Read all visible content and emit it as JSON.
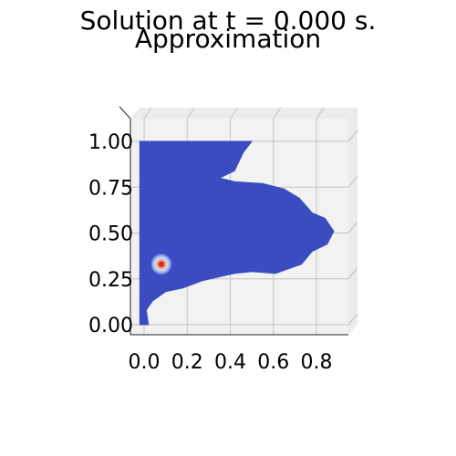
{
  "chart_data": {
    "type": "surface-3d",
    "title": "Solution at t = 0.000 s.",
    "subtitle": "Approximation",
    "view": "top-down",
    "x_ticks": [
      "0.0",
      "0.2",
      "0.4",
      "0.6",
      "0.8"
    ],
    "y_ticks": [
      "0.00",
      "0.25",
      "0.50",
      "0.75",
      "1.00"
    ],
    "xlim": [
      0.0,
      0.9
    ],
    "ylim": [
      0.0,
      1.0
    ],
    "colormap": "coolwarm",
    "surface_color": "#3b4cc0",
    "pane_color": "#f2f2f2",
    "grid": true,
    "peak": {
      "x": 0.08,
      "y": 0.33,
      "color": "#d62728"
    },
    "region_outline": [
      [
        0.0,
        1.0
      ],
      [
        0.5,
        1.0
      ],
      [
        0.46,
        0.94
      ],
      [
        0.42,
        0.84
      ],
      [
        0.35,
        0.8
      ],
      [
        0.42,
        0.78
      ],
      [
        0.55,
        0.77
      ],
      [
        0.65,
        0.74
      ],
      [
        0.72,
        0.69
      ],
      [
        0.78,
        0.61
      ],
      [
        0.84,
        0.58
      ],
      [
        0.88,
        0.51
      ],
      [
        0.85,
        0.44
      ],
      [
        0.78,
        0.4
      ],
      [
        0.73,
        0.33
      ],
      [
        0.61,
        0.28
      ],
      [
        0.5,
        0.29
      ],
      [
        0.42,
        0.28
      ],
      [
        0.27,
        0.24
      ],
      [
        0.18,
        0.2
      ],
      [
        0.1,
        0.18
      ],
      [
        0.04,
        0.13
      ],
      [
        0.01,
        0.08
      ],
      [
        0.02,
        0.0
      ],
      [
        -0.02,
        0.0
      ],
      [
        -0.02,
        1.0
      ]
    ]
  }
}
